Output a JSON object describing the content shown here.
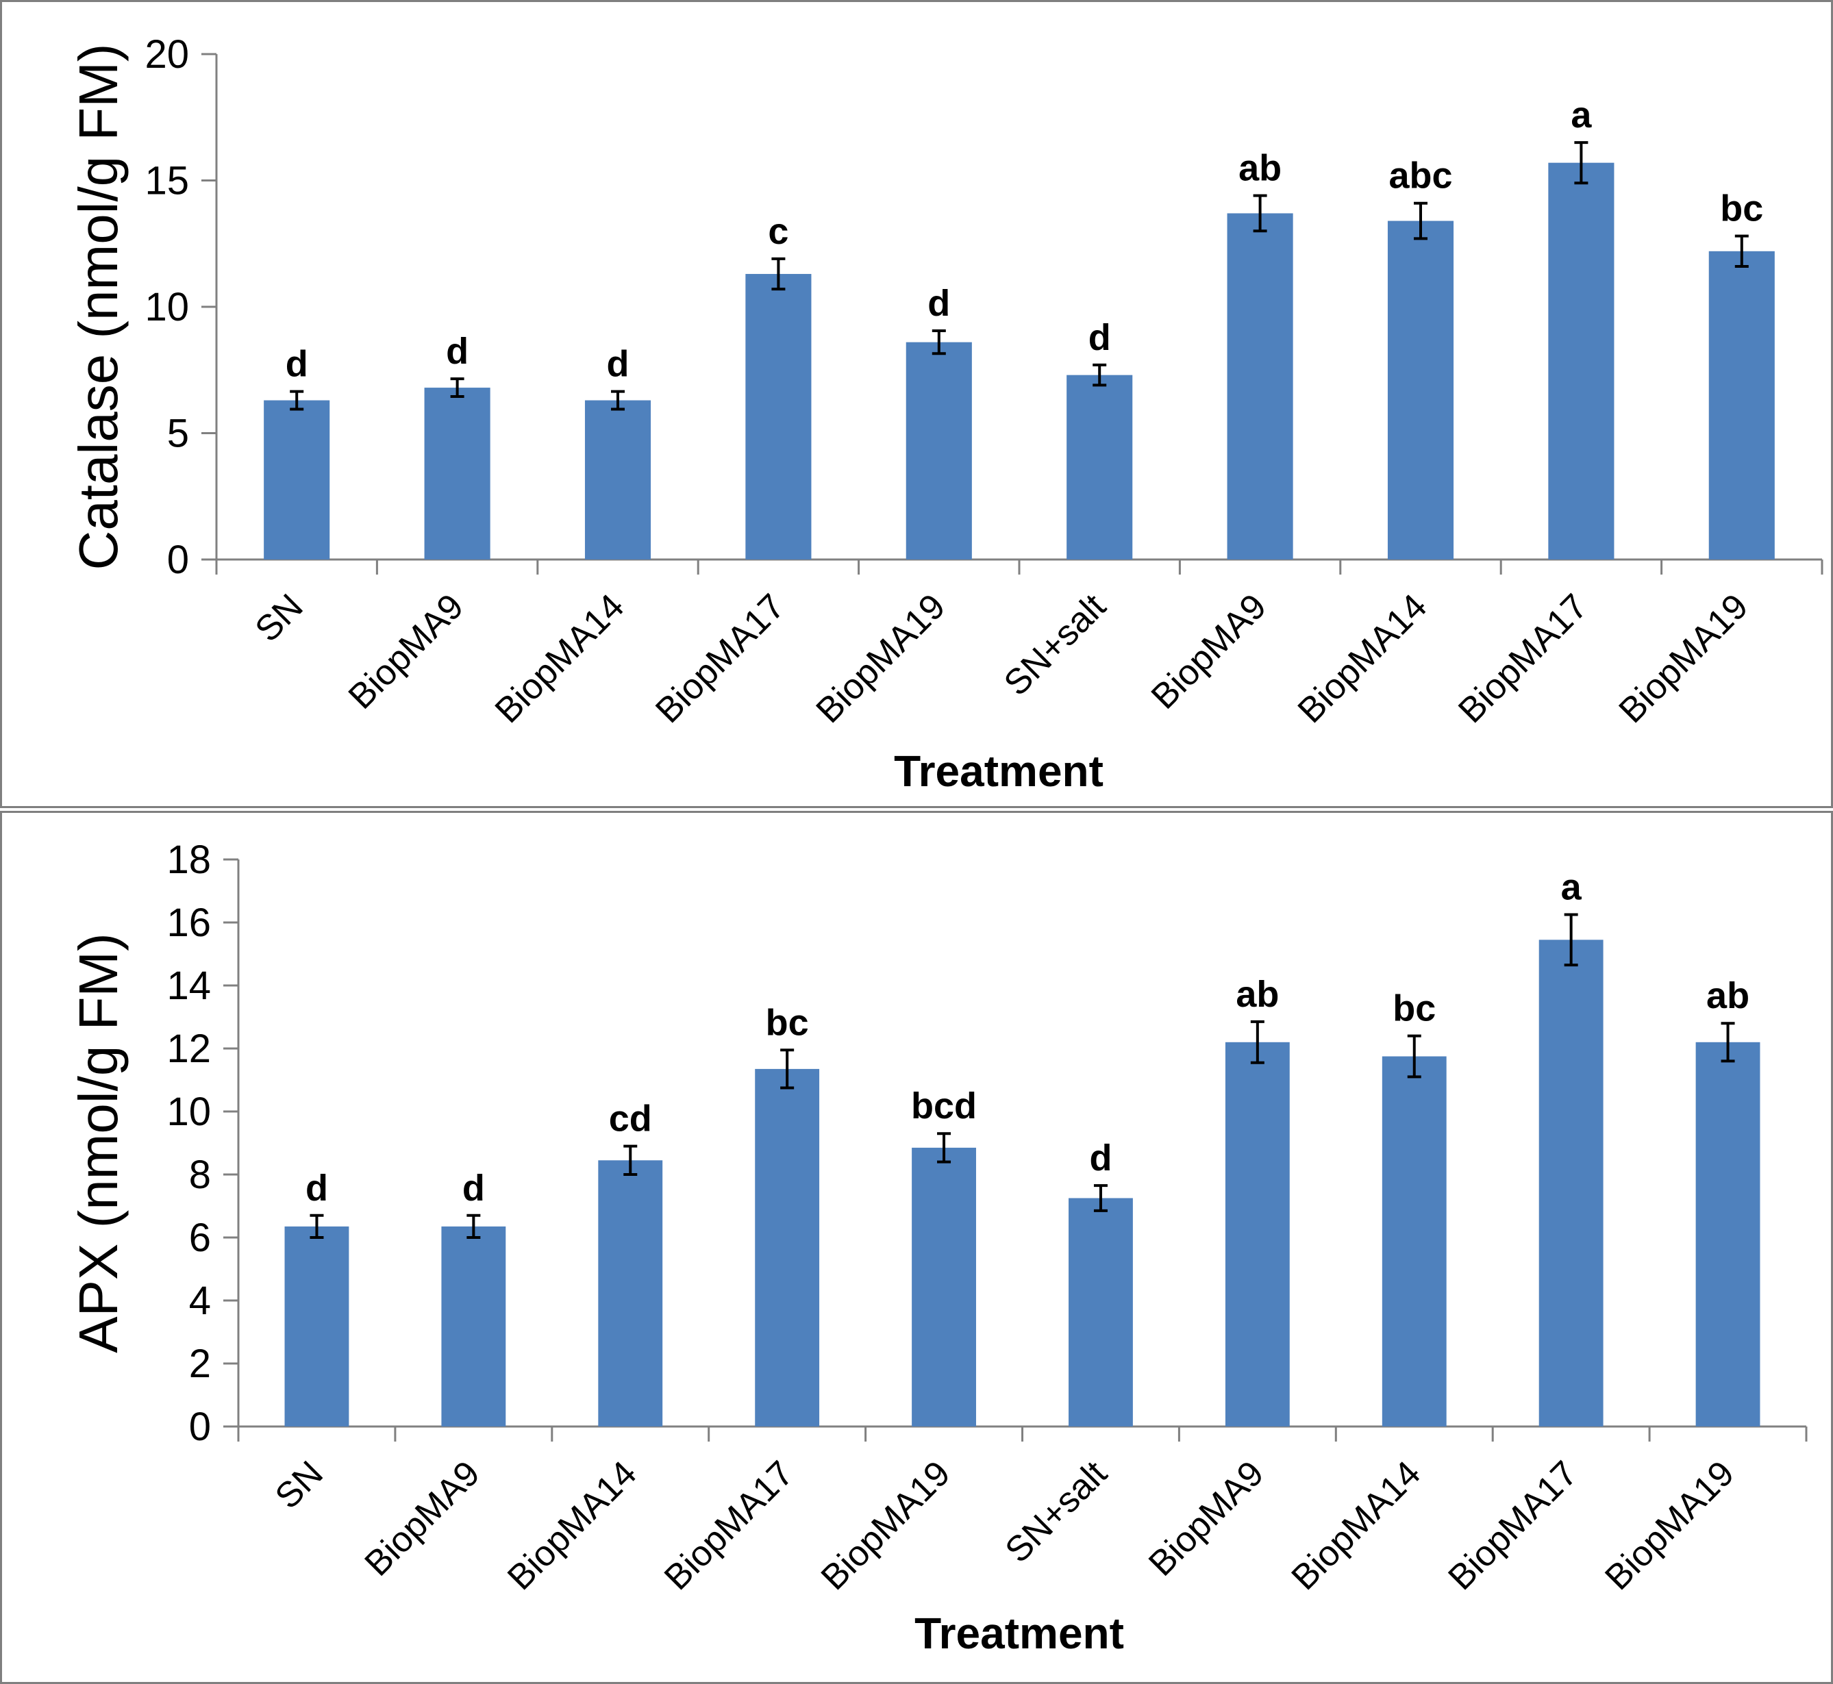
{
  "colors": {
    "bar": "#4f81bd",
    "axis": "#808080",
    "err": "#000000"
  },
  "chart_data": [
    {
      "type": "bar",
      "categories": [
        "SN",
        "BiopMA9",
        "BiopMA14",
        "BiopMA17",
        "BiopMA19",
        "SN+salt",
        "BiopMA9",
        "BiopMA14",
        "BiopMA17",
        "BiopMA19"
      ],
      "values": [
        6.3,
        6.8,
        6.3,
        11.3,
        8.6,
        7.3,
        13.7,
        13.4,
        15.7,
        12.2
      ],
      "errors": [
        0.35,
        0.35,
        0.35,
        0.6,
        0.45,
        0.4,
        0.7,
        0.7,
        0.8,
        0.6
      ],
      "letters": [
        "d",
        "d",
        "d",
        "c",
        "d",
        "d",
        "ab",
        "abc",
        "a",
        "bc"
      ],
      "xlabel": "Treatment",
      "ylabel": "Catalase (nmol/g FM)",
      "ylim": [
        0,
        20
      ],
      "yticks": [
        "0",
        "5",
        "10",
        "15",
        "20"
      ],
      "grid": false
    },
    {
      "type": "bar",
      "categories": [
        "SN",
        "BiopMA9",
        "BiopMA14",
        "BiopMA17",
        "BiopMA19",
        "SN+salt",
        "BiopMA9",
        "BiopMA14",
        "BiopMA17",
        "BiopMA19"
      ],
      "values": [
        6.35,
        6.35,
        8.45,
        11.35,
        8.85,
        7.25,
        12.2,
        11.75,
        15.45,
        12.2
      ],
      "errors": [
        0.35,
        0.35,
        0.45,
        0.6,
        0.45,
        0.4,
        0.65,
        0.65,
        0.8,
        0.6
      ],
      "letters": [
        "d",
        "d",
        "cd",
        "bc",
        "bcd",
        "d",
        "ab",
        "bc",
        "a",
        "ab"
      ],
      "xlabel": "Treatment",
      "ylabel": "APX (nmol/g FM)",
      "ylim": [
        0,
        18
      ],
      "yticks": [
        "0",
        "2",
        "4",
        "6",
        "8",
        "10",
        "12",
        "14",
        "16",
        "18"
      ],
      "grid": false
    }
  ]
}
